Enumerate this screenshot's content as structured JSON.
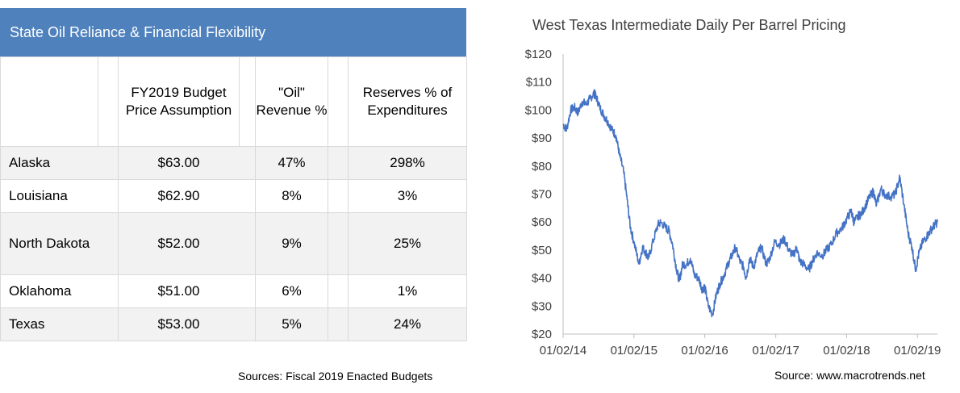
{
  "table": {
    "title": "State Oil Reliance & Financial Flexibility",
    "headers": [
      "FY2019 Budget Price Assumption",
      "\"Oil\" Revenue %",
      "Reserves % of Expenditures"
    ],
    "rows": [
      {
        "state": "Alaska",
        "price": "$63.00",
        "oil_rev": "47%",
        "reserves": "298%"
      },
      {
        "state": "Louisiana",
        "price": "$62.90",
        "oil_rev": "8%",
        "reserves": "3%"
      },
      {
        "state": "North Dakota",
        "price": "$52.00",
        "oil_rev": "9%",
        "reserves": "25%"
      },
      {
        "state": "Oklahoma",
        "price": "$51.00",
        "oil_rev": "6%",
        "reserves": "1%"
      },
      {
        "state": "Texas",
        "price": "$53.00",
        "oil_rev": "5%",
        "reserves": "24%"
      }
    ],
    "source": "Sources: Fiscal 2019 Enacted Budgets"
  },
  "chart_data": {
    "type": "line",
    "title": "West Texas Intermediate Daily Per Barrel Pricing",
    "xlabel": "",
    "ylabel": "",
    "ylim": [
      20,
      120
    ],
    "yticks": [
      20,
      30,
      40,
      50,
      60,
      70,
      80,
      90,
      100,
      110,
      120
    ],
    "ytick_labels": [
      "$20",
      "$30",
      "$40",
      "$50",
      "$60",
      "$70",
      "$80",
      "$90",
      "$100",
      "$110",
      "$120"
    ],
    "xticks": [
      "01/02/14",
      "01/02/15",
      "01/02/16",
      "01/02/17",
      "01/02/18",
      "01/02/19"
    ],
    "xlim": [
      "2014-01-02",
      "2019-04-15"
    ],
    "grid": false,
    "line_color": "#4472c4",
    "series": [
      {
        "name": "",
        "x": [
          "2014-01-02",
          "2014-01-20",
          "2014-02-10",
          "2014-03-01",
          "2014-03-20",
          "2014-04-10",
          "2014-05-01",
          "2014-05-20",
          "2014-06-10",
          "2014-06-20",
          "2014-07-10",
          "2014-08-01",
          "2014-08-20",
          "2014-09-10",
          "2014-10-01",
          "2014-10-20",
          "2014-11-10",
          "2014-11-28",
          "2014-12-15",
          "2015-01-02",
          "2015-01-28",
          "2015-02-15",
          "2015-03-05",
          "2015-03-18",
          "2015-04-10",
          "2015-05-05",
          "2015-05-20",
          "2015-06-15",
          "2015-07-01",
          "2015-07-20",
          "2015-08-10",
          "2015-08-24",
          "2015-09-10",
          "2015-10-01",
          "2015-10-20",
          "2015-11-10",
          "2015-12-01",
          "2015-12-20",
          "2016-01-02",
          "2016-01-20",
          "2016-02-11",
          "2016-03-01",
          "2016-03-20",
          "2016-04-10",
          "2016-05-01",
          "2016-05-20",
          "2016-06-08",
          "2016-07-01",
          "2016-07-20",
          "2016-08-02",
          "2016-08-20",
          "2016-09-10",
          "2016-10-01",
          "2016-10-20",
          "2016-11-14",
          "2016-12-01",
          "2016-12-28",
          "2017-01-20",
          "2017-02-15",
          "2017-03-10",
          "2017-04-01",
          "2017-04-20",
          "2017-05-05",
          "2017-05-25",
          "2017-06-21",
          "2017-07-10",
          "2017-08-01",
          "2017-08-30",
          "2017-09-20",
          "2017-10-15",
          "2017-11-10",
          "2017-12-10",
          "2018-01-02",
          "2018-01-25",
          "2018-02-09",
          "2018-03-01",
          "2018-03-20",
          "2018-04-10",
          "2018-05-01",
          "2018-05-20",
          "2018-06-05",
          "2018-06-28",
          "2018-07-15",
          "2018-08-15",
          "2018-09-10",
          "2018-10-03",
          "2018-10-25",
          "2018-11-15",
          "2018-12-05",
          "2018-12-24",
          "2019-01-10",
          "2019-01-30",
          "2019-02-20",
          "2019-03-10",
          "2019-04-01",
          "2019-04-15"
        ],
        "values": [
          95,
          93,
          100,
          101,
          99,
          103,
          102,
          104,
          106,
          105,
          101,
          98,
          96,
          93,
          91,
          84,
          78,
          68,
          58,
          53,
          45,
          51,
          49,
          47,
          53,
          59,
          60,
          58,
          57,
          52,
          43,
          39,
          45,
          45,
          47,
          41,
          40,
          36,
          37,
          30,
          27,
          34,
          38,
          41,
          45,
          48,
          51,
          46,
          44,
          40,
          47,
          44,
          49,
          51,
          45,
          47,
          53,
          52,
          54,
          50,
          48,
          51,
          46,
          45,
          43,
          46,
          49,
          48,
          50,
          52,
          56,
          58,
          61,
          64,
          60,
          62,
          63,
          66,
          69,
          71,
          66,
          72,
          70,
          69,
          70,
          76,
          66,
          56,
          51,
          43,
          49,
          53,
          55,
          57,
          59,
          60
        ]
      }
    ]
  },
  "chart_source": "Source: www.macrotrends.net"
}
